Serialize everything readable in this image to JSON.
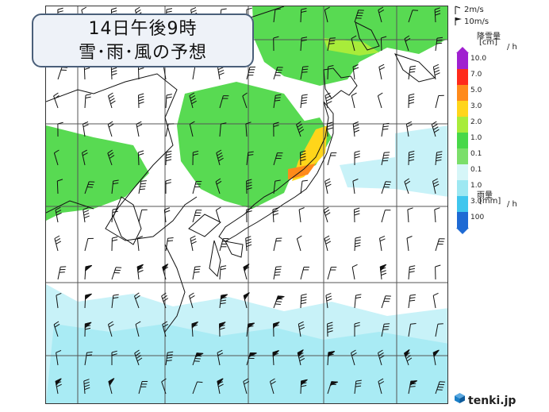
{
  "title": {
    "line1": "14日午後9時",
    "line2": "雪･雨･風の予想"
  },
  "legend": {
    "wind_small": "2m/s",
    "wind_large": "10m/s",
    "snow_label": "降雪量",
    "snow_unit": "[cm]",
    "per_hour": "/ h",
    "rain_label": "雨量",
    "rain_unit": "[mm]",
    "snow_scale": [
      {
        "value": "10.0",
        "color": "#a020d0"
      },
      {
        "value": "7.0",
        "color": "#ff2a1a"
      },
      {
        "value": "5.0",
        "color": "#ff8a1a"
      },
      {
        "value": "3.0",
        "color": "#ffd51a"
      },
      {
        "value": "2.0",
        "color": "#a8ec3a"
      },
      {
        "value": "1.0",
        "color": "#48d848"
      },
      {
        "value": "0.1",
        "color": "#7bdf6a"
      }
    ],
    "rain_scale": [
      {
        "value": "0.1",
        "color": "#d6f6f8"
      },
      {
        "value": "1.0",
        "color": "#9ee8f2"
      },
      {
        "value": "3.0",
        "color": "#3fc6ee"
      },
      {
        "value": "100",
        "color": "#1e6ad4"
      }
    ]
  },
  "brand": {
    "name": "tenki.jp",
    "color": "#1a7fc8"
  }
}
